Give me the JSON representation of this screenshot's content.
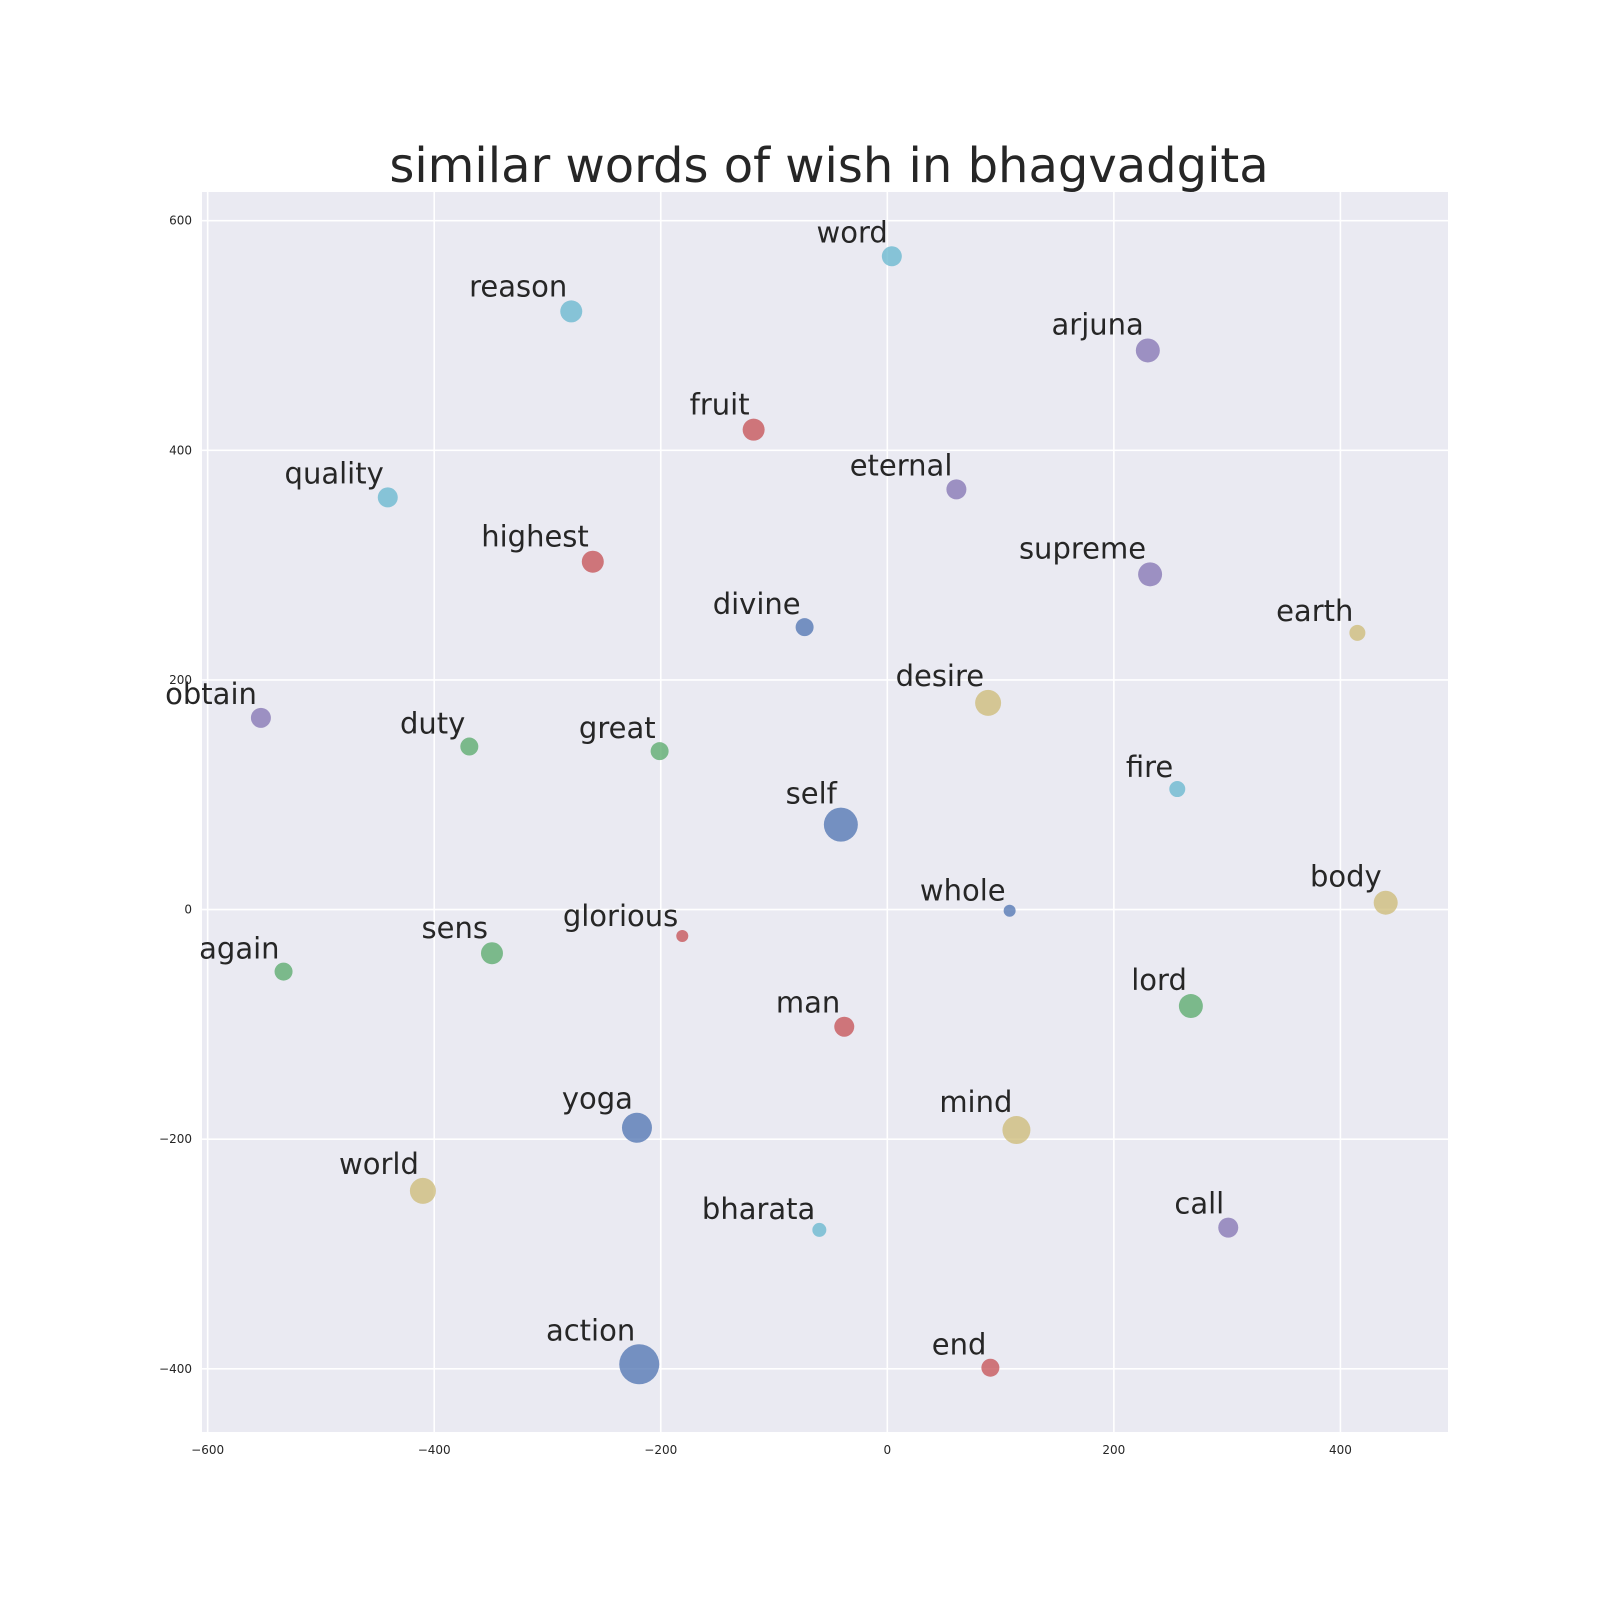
{
  "chart_data": {
    "type": "scatter",
    "title": "similar words of wish in bhagvadgita",
    "xlabel": "",
    "ylabel": "",
    "xlim": [
      -605,
      495
    ],
    "ylim": [
      -455,
      625
    ],
    "grid": true,
    "x_ticks": [
      -600,
      -400,
      -200,
      0,
      200,
      400
    ],
    "x_tick_labels": [
      "−600",
      "−400",
      "−200",
      "0",
      "200",
      "400"
    ],
    "y_ticks": [
      -400,
      -200,
      0,
      200,
      400,
      600
    ],
    "y_tick_labels": [
      "−400",
      "−200",
      "0",
      "200",
      "400",
      "600"
    ],
    "colors": {
      "background": "#eaeaf2",
      "grid": "#ffffff",
      "blue": "#4c72b0",
      "green": "#55a868",
      "red": "#c44e52",
      "purple": "#8172b2",
      "yellow": "#ccb974",
      "cyan": "#64b5cd"
    },
    "points": [
      {
        "label": "word",
        "x": 4,
        "y": 569,
        "size": 10,
        "color": "cyan"
      },
      {
        "label": "reason",
        "x": -279,
        "y": 521,
        "size": 11,
        "color": "cyan"
      },
      {
        "label": "arjuna",
        "x": 230,
        "y": 487,
        "size": 12,
        "color": "purple"
      },
      {
        "label": "fruit",
        "x": -118,
        "y": 418,
        "size": 11,
        "color": "red"
      },
      {
        "label": "eternal",
        "x": 61,
        "y": 366,
        "size": 10,
        "color": "purple"
      },
      {
        "label": "quality",
        "x": -441,
        "y": 359,
        "size": 10,
        "color": "cyan"
      },
      {
        "label": "highest",
        "x": -260,
        "y": 303,
        "size": 11,
        "color": "red"
      },
      {
        "label": "supreme",
        "x": 232,
        "y": 292,
        "size": 12,
        "color": "purple"
      },
      {
        "label": "divine",
        "x": -73,
        "y": 246,
        "size": 9,
        "color": "blue"
      },
      {
        "label": "earth",
        "x": 415,
        "y": 241,
        "size": 8,
        "color": "yellow"
      },
      {
        "label": "desire",
        "x": 89,
        "y": 180,
        "size": 13,
        "color": "yellow"
      },
      {
        "label": "obtain",
        "x": -553,
        "y": 167,
        "size": 10,
        "color": "purple"
      },
      {
        "label": "duty",
        "x": -369,
        "y": 142,
        "size": 9,
        "color": "green"
      },
      {
        "label": "great",
        "x": -201,
        "y": 138,
        "size": 9,
        "color": "green"
      },
      {
        "label": "fire",
        "x": 256,
        "y": 105,
        "size": 8,
        "color": "cyan"
      },
      {
        "label": "self",
        "x": -41,
        "y": 74,
        "size": 17,
        "color": "blue"
      },
      {
        "label": "body",
        "x": 440,
        "y": 6,
        "size": 12,
        "color": "yellow"
      },
      {
        "label": "whole",
        "x": 108,
        "y": -1,
        "size": 6,
        "color": "blue"
      },
      {
        "label": "glorious",
        "x": -181,
        "y": -23,
        "size": 6,
        "color": "red"
      },
      {
        "label": "sens",
        "x": -349,
        "y": -38,
        "size": 11,
        "color": "green"
      },
      {
        "label": "again",
        "x": -533,
        "y": -54,
        "size": 9,
        "color": "green"
      },
      {
        "label": "lord",
        "x": 268,
        "y": -84,
        "size": 12,
        "color": "green"
      },
      {
        "label": "man",
        "x": -38,
        "y": -102,
        "size": 10,
        "color": "red"
      },
      {
        "label": "yoga",
        "x": -221,
        "y": -190,
        "size": 15,
        "color": "blue"
      },
      {
        "label": "mind",
        "x": 114,
        "y": -192,
        "size": 14,
        "color": "yellow"
      },
      {
        "label": "world",
        "x": -410,
        "y": -245,
        "size": 13,
        "color": "yellow"
      },
      {
        "label": "bharata",
        "x": -60,
        "y": -279,
        "size": 7,
        "color": "cyan"
      },
      {
        "label": "call",
        "x": 301,
        "y": -277,
        "size": 10,
        "color": "purple"
      },
      {
        "label": "action",
        "x": -219,
        "y": -396,
        "size": 20,
        "color": "blue"
      },
      {
        "label": "end",
        "x": 91,
        "y": -399,
        "size": 9,
        "color": "red"
      }
    ]
  }
}
